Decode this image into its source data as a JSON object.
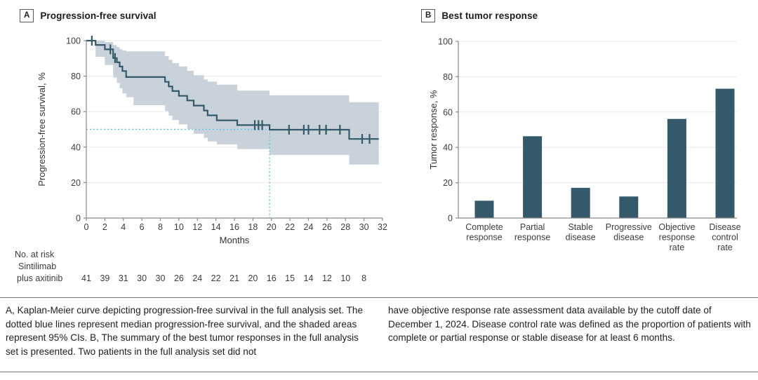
{
  "panel_a": {
    "label": "A",
    "title": "Progression-free survival",
    "at_risk": {
      "heading": "No. at risk",
      "group_line1": "Sintilimab",
      "group_line2": "plus axitinib",
      "values": [
        41,
        39,
        31,
        30,
        30,
        26,
        24,
        22,
        21,
        20,
        16,
        15,
        14,
        12,
        10,
        8
      ]
    }
  },
  "panel_b": {
    "label": "B",
    "title": "Best tumor response"
  },
  "caption": {
    "left": "A, Kaplan-Meier curve depicting progression-free survival in the full analysis set. The dotted blue lines represent median progression-free survival, and the shaded areas represent 95% CIs. B, The summary of the best tumor responses in the full analysis set is presented. Two patients in the full analysis set did not",
    "right": "have objective response rate assessment data available by the cutoff date of December 1, 2024. Disease control rate was defined as the proportion of patients with complete or partial response or stable disease for at least 6 months."
  },
  "colors": {
    "accent_teal": "#34596a",
    "ci_band": "#c9d2da",
    "median_dotted": "#5fc3e6",
    "grid": "#e9e9e9",
    "axis": "#8a8a8a",
    "tick_text": "#3d3d3d"
  },
  "chart_data": [
    {
      "type": "line",
      "subtype": "kaplan-meier-step",
      "title": "Progression-free survival",
      "xlabel": "Months",
      "ylabel": "Progression-free survival, %",
      "xlim": [
        0,
        32
      ],
      "ylim": [
        0,
        100
      ],
      "xticks": [
        0,
        2,
        4,
        6,
        8,
        10,
        12,
        14,
        16,
        18,
        20,
        22,
        24,
        26,
        28,
        30,
        32
      ],
      "yticks": [
        0,
        20,
        40,
        60,
        80,
        100
      ],
      "grid": true,
      "series": [
        {
          "name": "Sintilimab plus axitinib",
          "steps": [
            [
              0,
              100
            ],
            [
              1.0,
              97.6
            ],
            [
              2.0,
              95.1
            ],
            [
              2.9,
              90.2
            ],
            [
              3.3,
              87.8
            ],
            [
              3.6,
              85.4
            ],
            [
              3.9,
              82.9
            ],
            [
              4.3,
              79.5
            ],
            [
              8.5,
              76.8
            ],
            [
              8.9,
              74.2
            ],
            [
              9.3,
              71.6
            ],
            [
              10.0,
              68.9
            ],
            [
              10.9,
              66.3
            ],
            [
              11.6,
              63.4
            ],
            [
              12.7,
              60.6
            ],
            [
              13.1,
              57.9
            ],
            [
              14.1,
              55.1
            ],
            [
              16.3,
              52.4
            ],
            [
              19.8,
              49.8
            ],
            [
              28.4,
              44.6
            ],
            [
              31.6,
              44.6
            ]
          ]
        }
      ],
      "censor_marks": [
        [
          0.6,
          100
        ],
        [
          2.6,
          95.1
        ],
        [
          3.1,
          90.2
        ],
        [
          18.2,
          52.4
        ],
        [
          18.6,
          52.4
        ],
        [
          19.0,
          52.4
        ],
        [
          21.9,
          49.8
        ],
        [
          23.5,
          49.8
        ],
        [
          24.0,
          49.8
        ],
        [
          25.2,
          49.8
        ],
        [
          25.9,
          49.8
        ],
        [
          27.4,
          49.8
        ],
        [
          29.8,
          44.6
        ],
        [
          30.6,
          44.6
        ]
      ],
      "ci_band": {
        "upper": [
          [
            0,
            100
          ],
          [
            1.0,
            100
          ],
          [
            2.0,
            99.2
          ],
          [
            2.9,
            97.6
          ],
          [
            3.3,
            96.4
          ],
          [
            3.6,
            95.3
          ],
          [
            3.9,
            94.5
          ],
          [
            4.3,
            94.0
          ],
          [
            8.5,
            91.3
          ],
          [
            8.9,
            89.2
          ],
          [
            9.3,
            87.3
          ],
          [
            10.0,
            85.5
          ],
          [
            10.9,
            83.0
          ],
          [
            11.6,
            80.5
          ],
          [
            12.7,
            78.2
          ],
          [
            13.1,
            76.9
          ],
          [
            14.1,
            75.2
          ],
          [
            16.3,
            71.8
          ],
          [
            19.8,
            69.2
          ],
          [
            28.4,
            65.3
          ],
          [
            31.6,
            65.3
          ]
        ],
        "lower": [
          [
            0,
            100
          ],
          [
            1.0,
            90.9
          ],
          [
            2.0,
            86.3
          ],
          [
            2.9,
            79.2
          ],
          [
            3.3,
            76.2
          ],
          [
            3.6,
            73.2
          ],
          [
            3.9,
            70.3
          ],
          [
            4.3,
            68.2
          ],
          [
            5.1,
            63.6
          ],
          [
            8.5,
            60.4
          ],
          [
            8.9,
            57.7
          ],
          [
            9.3,
            55.2
          ],
          [
            10.0,
            52.8
          ],
          [
            10.9,
            50.2
          ],
          [
            11.6,
            47.5
          ],
          [
            12.7,
            45.2
          ],
          [
            13.1,
            43.2
          ],
          [
            14.1,
            41.5
          ],
          [
            16.3,
            38.9
          ],
          [
            19.8,
            35.6
          ],
          [
            28.4,
            30.2
          ],
          [
            31.6,
            30.2
          ]
        ]
      },
      "median_line_pct": 50,
      "median_months": 19.8,
      "legend_position": "none"
    },
    {
      "type": "bar",
      "title": "Best tumor response",
      "xlabel": "",
      "ylabel": "Tumor response, %",
      "ylim": [
        0,
        100
      ],
      "yticks": [
        0,
        20,
        40,
        60,
        80,
        100
      ],
      "grid": true,
      "categories": [
        "Complete response",
        "Partial response",
        "Stable disease",
        "Progressive disease",
        "Objective response rate",
        "Disease control rate"
      ],
      "category_label_lines": [
        [
          "Complete",
          "response"
        ],
        [
          "Partial",
          "response"
        ],
        [
          "Stable",
          "disease"
        ],
        [
          "Progressive",
          "disease"
        ],
        [
          "Objective",
          "response",
          "rate"
        ],
        [
          "Disease",
          "control",
          "rate"
        ]
      ],
      "values": [
        9.8,
        46.3,
        17.1,
        12.2,
        56.1,
        73.2
      ]
    }
  ]
}
